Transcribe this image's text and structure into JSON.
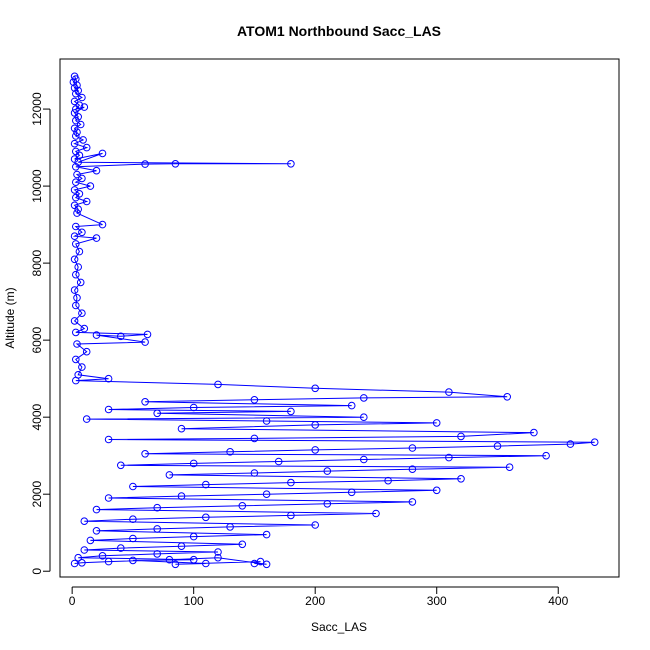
{
  "chart_data": {
    "type": "scatter",
    "title": "ATOM1 Northbound Sacc_LAS",
    "xlabel": "Sacc_LAS",
    "ylabel": "Altitude (m)",
    "xlim": [
      -10,
      450
    ],
    "ylim": [
      -150,
      13300
    ],
    "xticks": [
      0,
      100,
      200,
      300,
      400
    ],
    "yticks": [
      0,
      2000,
      4000,
      6000,
      8000,
      10000,
      12000
    ],
    "plot_style": "points connected by lines (open circles)",
    "grid": false,
    "legend": "none",
    "color": "#0000ff",
    "series": [
      {
        "values": [
          [
            2,
            12850
          ],
          [
            3,
            12780
          ],
          [
            1,
            12700
          ],
          [
            4,
            12620
          ],
          [
            2,
            12550
          ],
          [
            5,
            12480
          ],
          [
            3,
            12400
          ],
          [
            8,
            12300
          ],
          [
            2,
            12200
          ],
          [
            6,
            12100
          ],
          [
            3,
            12000
          ],
          [
            10,
            12050
          ],
          [
            2,
            11900
          ],
          [
            5,
            11800
          ],
          [
            3,
            11700
          ],
          [
            7,
            11600
          ],
          [
            2,
            11500
          ],
          [
            4,
            11400
          ],
          [
            3,
            11300
          ],
          [
            9,
            11200
          ],
          [
            2,
            11100
          ],
          [
            12,
            11000
          ],
          [
            3,
            10900
          ],
          [
            6,
            10800
          ],
          [
            2,
            10700
          ],
          [
            25,
            10850
          ],
          [
            5,
            10620
          ],
          [
            180,
            10580
          ],
          [
            85,
            10580
          ],
          [
            60,
            10570
          ],
          [
            3,
            10500
          ],
          [
            20,
            10400
          ],
          [
            4,
            10300
          ],
          [
            8,
            10200
          ],
          [
            3,
            10100
          ],
          [
            15,
            10000
          ],
          [
            2,
            9900
          ],
          [
            6,
            9800
          ],
          [
            3,
            9700
          ],
          [
            12,
            9600
          ],
          [
            2,
            9500
          ],
          [
            5,
            9400
          ],
          [
            4,
            9300
          ],
          [
            25,
            9000
          ],
          [
            3,
            8950
          ],
          [
            8,
            8800
          ],
          [
            2,
            8700
          ],
          [
            20,
            8650
          ],
          [
            3,
            8500
          ],
          [
            6,
            8300
          ],
          [
            2,
            8100
          ],
          [
            5,
            7900
          ],
          [
            3,
            7700
          ],
          [
            7,
            7500
          ],
          [
            2,
            7300
          ],
          [
            4,
            7100
          ],
          [
            3,
            6900
          ],
          [
            8,
            6700
          ],
          [
            2,
            6500
          ],
          [
            10,
            6300
          ],
          [
            3,
            6200
          ],
          [
            62,
            6150
          ],
          [
            40,
            6100
          ],
          [
            20,
            6130
          ],
          [
            60,
            5950
          ],
          [
            4,
            5900
          ],
          [
            12,
            5700
          ],
          [
            3,
            5500
          ],
          [
            8,
            5300
          ],
          [
            5,
            5100
          ],
          [
            30,
            5000
          ],
          [
            3,
            4950
          ],
          [
            120,
            4850
          ],
          [
            200,
            4750
          ],
          [
            310,
            4650
          ],
          [
            358,
            4530
          ],
          [
            240,
            4500
          ],
          [
            150,
            4450
          ],
          [
            60,
            4400
          ],
          [
            230,
            4300
          ],
          [
            100,
            4250
          ],
          [
            30,
            4200
          ],
          [
            180,
            4150
          ],
          [
            70,
            4100
          ],
          [
            240,
            4000
          ],
          [
            12,
            3950
          ],
          [
            160,
            3900
          ],
          [
            300,
            3850
          ],
          [
            200,
            3800
          ],
          [
            90,
            3700
          ],
          [
            380,
            3600
          ],
          [
            320,
            3500
          ],
          [
            150,
            3450
          ],
          [
            30,
            3420
          ],
          [
            430,
            3350
          ],
          [
            410,
            3300
          ],
          [
            350,
            3250
          ],
          [
            280,
            3200
          ],
          [
            200,
            3150
          ],
          [
            130,
            3100
          ],
          [
            60,
            3050
          ],
          [
            390,
            3000
          ],
          [
            310,
            2950
          ],
          [
            240,
            2900
          ],
          [
            170,
            2850
          ],
          [
            100,
            2800
          ],
          [
            40,
            2750
          ],
          [
            360,
            2700
          ],
          [
            280,
            2650
          ],
          [
            210,
            2600
          ],
          [
            150,
            2550
          ],
          [
            80,
            2500
          ],
          [
            320,
            2400
          ],
          [
            260,
            2350
          ],
          [
            180,
            2300
          ],
          [
            110,
            2250
          ],
          [
            50,
            2200
          ],
          [
            300,
            2100
          ],
          [
            230,
            2050
          ],
          [
            160,
            2000
          ],
          [
            90,
            1950
          ],
          [
            30,
            1900
          ],
          [
            280,
            1800
          ],
          [
            210,
            1750
          ],
          [
            140,
            1700
          ],
          [
            70,
            1650
          ],
          [
            20,
            1600
          ],
          [
            250,
            1500
          ],
          [
            180,
            1450
          ],
          [
            110,
            1400
          ],
          [
            50,
            1350
          ],
          [
            10,
            1300
          ],
          [
            200,
            1200
          ],
          [
            130,
            1150
          ],
          [
            70,
            1100
          ],
          [
            20,
            1050
          ],
          [
            160,
            950
          ],
          [
            100,
            900
          ],
          [
            50,
            850
          ],
          [
            15,
            800
          ],
          [
            140,
            700
          ],
          [
            90,
            650
          ],
          [
            40,
            600
          ],
          [
            10,
            550
          ],
          [
            120,
            500
          ],
          [
            70,
            450
          ],
          [
            25,
            400
          ],
          [
            5,
            350
          ],
          [
            100,
            300
          ],
          [
            50,
            280
          ],
          [
            110,
            200
          ],
          [
            85,
            180
          ],
          [
            155,
            250
          ],
          [
            150,
            200
          ],
          [
            160,
            180
          ],
          [
            120,
            350
          ],
          [
            80,
            300
          ],
          [
            30,
            250
          ],
          [
            8,
            220
          ],
          [
            2,
            200
          ]
        ]
      }
    ]
  }
}
